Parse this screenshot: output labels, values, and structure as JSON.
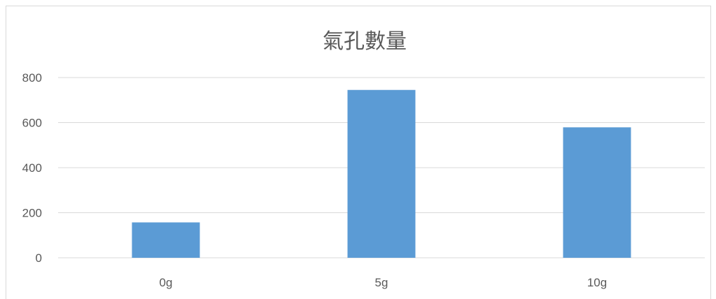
{
  "chart_data": {
    "type": "bar",
    "title": "氣孔數量",
    "categories": [
      "0g",
      "5g",
      "10g"
    ],
    "values": [
      157,
      745,
      579
    ],
    "ylim": [
      0,
      800
    ],
    "yticks": [
      0,
      200,
      400,
      600,
      800
    ],
    "grid": true,
    "legend": "none",
    "bar_color": "#5b9bd5",
    "grid_color": "#d9d9d9",
    "text_color": "#595959"
  }
}
